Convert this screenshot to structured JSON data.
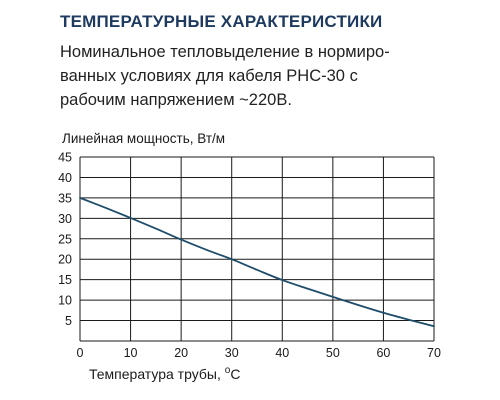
{
  "header": {
    "title": "ТЕМПЕРАТУРНЫЕ ХАРАКТЕРИСТИКИ",
    "description_lines": [
      "Номинальное тепловыделение в нормиро-",
      "ванных условиях для кабеля РНС-30 с",
      "рабочим напряжением ~220В."
    ]
  },
  "colors": {
    "heading": "#1e3a5f",
    "line": "#1e4d6b",
    "grid": "#1a1a1a",
    "text": "#1a1a1a"
  },
  "chart_data": {
    "type": "line",
    "title": "",
    "ylabel": "Линейная мощность, Вт/м",
    "xlabel_main": "Температура трубы, ",
    "xlabel_sup": "o",
    "xlabel_unit": "C",
    "xlim": [
      0,
      70
    ],
    "ylim": [
      0,
      45
    ],
    "x_ticks": [
      0,
      10,
      20,
      30,
      40,
      50,
      60,
      70
    ],
    "y_ticks": [
      5,
      10,
      15,
      20,
      25,
      30,
      35,
      40,
      45
    ],
    "grid": true,
    "x": [
      0,
      5,
      10,
      15,
      20,
      25,
      30,
      35,
      40,
      45,
      50,
      55,
      60,
      65,
      70
    ],
    "y": [
      35,
      32.6,
      30.1,
      27.5,
      24.8,
      22.3,
      20,
      17.4,
      14.9,
      12.8,
      10.8,
      8.8,
      6.9,
      5.2,
      3.6
    ]
  }
}
